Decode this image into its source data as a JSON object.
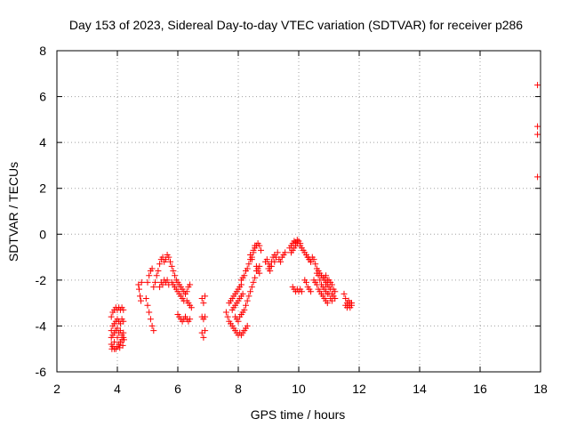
{
  "chart_data": {
    "type": "scatter",
    "title": "Day 153 of 2023, Sidereal Day-to-day VTEC variation (SDTVAR) for receiver p286",
    "xlabel": "GPS time / hours",
    "ylabel": "SDTVAR / TECUs",
    "xlim": [
      2,
      18
    ],
    "ylim": [
      -6,
      8
    ],
    "xticks": [
      2,
      4,
      6,
      8,
      10,
      12,
      14,
      16,
      18
    ],
    "yticks": [
      -6,
      -4,
      -2,
      0,
      2,
      4,
      6,
      8
    ],
    "grid": true,
    "marker": "+",
    "marker_color": "#ff0000",
    "series": [
      {
        "name": "SDTVAR",
        "points": [
          [
            3.8,
            -3.6
          ],
          [
            3.85,
            -3.4
          ],
          [
            3.9,
            -3.3
          ],
          [
            3.95,
            -3.2
          ],
          [
            4.0,
            -3.3
          ],
          [
            4.05,
            -3.2
          ],
          [
            4.1,
            -3.3
          ],
          [
            4.15,
            -3.2
          ],
          [
            4.2,
            -3.3
          ],
          [
            3.8,
            -4.2
          ],
          [
            3.85,
            -4.0
          ],
          [
            3.9,
            -3.9
          ],
          [
            3.95,
            -3.8
          ],
          [
            4.0,
            -3.7
          ],
          [
            4.05,
            -3.8
          ],
          [
            4.1,
            -3.9
          ],
          [
            4.15,
            -3.7
          ],
          [
            4.2,
            -3.8
          ],
          [
            3.8,
            -4.5
          ],
          [
            3.85,
            -4.4
          ],
          [
            3.9,
            -4.3
          ],
          [
            3.95,
            -4.2
          ],
          [
            4.0,
            -4.1
          ],
          [
            4.05,
            -4.3
          ],
          [
            4.1,
            -4.2
          ],
          [
            4.15,
            -4.4
          ],
          [
            4.2,
            -4.3
          ],
          [
            3.8,
            -4.8
          ],
          [
            3.85,
            -4.9
          ],
          [
            3.9,
            -5.0
          ],
          [
            3.95,
            -5.0
          ],
          [
            4.0,
            -4.9
          ],
          [
            4.05,
            -4.8
          ],
          [
            4.1,
            -4.7
          ],
          [
            4.15,
            -4.6
          ],
          [
            4.2,
            -4.5
          ],
          [
            3.82,
            -5.0
          ],
          [
            3.9,
            -4.7
          ],
          [
            4.0,
            -4.5
          ],
          [
            4.08,
            -4.95
          ],
          [
            4.18,
            -4.85
          ],
          [
            4.22,
            -4.6
          ],
          [
            4.7,
            -2.2
          ],
          [
            4.72,
            -2.4
          ],
          [
            4.75,
            -2.7
          ],
          [
            4.78,
            -2.9
          ],
          [
            4.8,
            -2.1
          ],
          [
            4.95,
            -2.8
          ],
          [
            5.0,
            -3.1
          ],
          [
            5.05,
            -3.4
          ],
          [
            5.1,
            -3.7
          ],
          [
            5.15,
            -4.0
          ],
          [
            5.2,
            -4.2
          ],
          [
            5.0,
            -2.1
          ],
          [
            5.05,
            -1.8
          ],
          [
            5.1,
            -1.6
          ],
          [
            5.15,
            -1.5
          ],
          [
            5.2,
            -2.3
          ],
          [
            5.25,
            -2.1
          ],
          [
            5.3,
            -1.8
          ],
          [
            5.35,
            -1.6
          ],
          [
            5.4,
            -1.3
          ],
          [
            5.45,
            -1.1
          ],
          [
            5.5,
            -1.0
          ],
          [
            5.55,
            -1.2
          ],
          [
            5.6,
            -1.1
          ],
          [
            5.65,
            -0.9
          ],
          [
            5.4,
            -2.3
          ],
          [
            5.45,
            -2.1
          ],
          [
            5.5,
            -2.2
          ],
          [
            5.55,
            -2.0
          ],
          [
            5.6,
            -2.1
          ],
          [
            5.65,
            -2.0
          ],
          [
            5.7,
            -2.2
          ],
          [
            5.7,
            -1.0
          ],
          [
            5.75,
            -1.2
          ],
          [
            5.8,
            -1.4
          ],
          [
            5.85,
            -1.6
          ],
          [
            5.9,
            -1.8
          ],
          [
            5.95,
            -2.0
          ],
          [
            6.0,
            -2.1
          ],
          [
            5.8,
            -2.1
          ],
          [
            5.85,
            -2.2
          ],
          [
            5.9,
            -2.3
          ],
          [
            5.95,
            -2.4
          ],
          [
            6.0,
            -2.5
          ],
          [
            6.05,
            -2.6
          ],
          [
            6.1,
            -2.7
          ],
          [
            6.15,
            -2.8
          ],
          [
            6.2,
            -2.9
          ],
          [
            6.05,
            -2.2
          ],
          [
            6.1,
            -2.3
          ],
          [
            6.15,
            -2.4
          ],
          [
            6.2,
            -2.5
          ],
          [
            6.25,
            -2.6
          ],
          [
            6.3,
            -2.5
          ],
          [
            6.35,
            -2.3
          ],
          [
            6.4,
            -2.2
          ],
          [
            6.0,
            -3.5
          ],
          [
            6.05,
            -3.6
          ],
          [
            6.1,
            -3.7
          ],
          [
            6.15,
            -3.8
          ],
          [
            6.2,
            -3.7
          ],
          [
            6.25,
            -3.6
          ],
          [
            6.3,
            -3.7
          ],
          [
            6.35,
            -3.8
          ],
          [
            6.4,
            -3.7
          ],
          [
            6.3,
            -2.9
          ],
          [
            6.35,
            -3.0
          ],
          [
            6.4,
            -3.1
          ],
          [
            6.45,
            -3.2
          ],
          [
            6.8,
            -2.8
          ],
          [
            6.85,
            -3.0
          ],
          [
            6.9,
            -2.7
          ],
          [
            6.8,
            -3.6
          ],
          [
            6.85,
            -3.7
          ],
          [
            6.9,
            -3.6
          ],
          [
            6.8,
            -4.3
          ],
          [
            6.85,
            -4.5
          ],
          [
            6.9,
            -4.2
          ],
          [
            7.6,
            -3.4
          ],
          [
            7.65,
            -3.6
          ],
          [
            7.7,
            -3.8
          ],
          [
            7.75,
            -3.9
          ],
          [
            7.8,
            -4.0
          ],
          [
            7.85,
            -4.1
          ],
          [
            7.9,
            -4.2
          ],
          [
            7.95,
            -4.3
          ],
          [
            8.0,
            -4.4
          ],
          [
            8.05,
            -4.3
          ],
          [
            8.1,
            -4.4
          ],
          [
            8.15,
            -4.3
          ],
          [
            8.2,
            -4.2
          ],
          [
            8.25,
            -4.1
          ],
          [
            8.3,
            -4.0
          ],
          [
            7.7,
            -3.0
          ],
          [
            7.75,
            -2.9
          ],
          [
            7.8,
            -2.8
          ],
          [
            7.85,
            -2.7
          ],
          [
            7.9,
            -2.6
          ],
          [
            7.95,
            -2.5
          ],
          [
            8.0,
            -2.4
          ],
          [
            8.05,
            -2.3
          ],
          [
            8.1,
            -2.2
          ],
          [
            7.8,
            -3.3
          ],
          [
            7.85,
            -3.2
          ],
          [
            7.9,
            -3.1
          ],
          [
            7.95,
            -3.0
          ],
          [
            8.0,
            -2.9
          ],
          [
            8.05,
            -2.8
          ],
          [
            8.1,
            -2.7
          ],
          [
            8.15,
            -2.6
          ],
          [
            7.9,
            -3.6
          ],
          [
            7.95,
            -3.7
          ],
          [
            8.0,
            -3.8
          ],
          [
            8.05,
            -3.6
          ],
          [
            8.1,
            -3.5
          ],
          [
            8.15,
            -3.4
          ],
          [
            8.1,
            -2.0
          ],
          [
            8.15,
            -1.9
          ],
          [
            8.2,
            -1.8
          ],
          [
            8.25,
            -1.6
          ],
          [
            8.3,
            -1.5
          ],
          [
            8.35,
            -1.3
          ],
          [
            8.4,
            -1.1
          ],
          [
            8.45,
            -1.0
          ],
          [
            8.2,
            -3.3
          ],
          [
            8.25,
            -3.1
          ],
          [
            8.3,
            -2.9
          ],
          [
            8.35,
            -2.7
          ],
          [
            8.4,
            -2.5
          ],
          [
            8.45,
            -2.3
          ],
          [
            8.5,
            -2.1
          ],
          [
            8.55,
            -1.9
          ],
          [
            8.5,
            -0.8
          ],
          [
            8.55,
            -0.6
          ],
          [
            8.6,
            -0.5
          ],
          [
            8.65,
            -0.4
          ],
          [
            8.7,
            -0.5
          ],
          [
            8.75,
            -0.7
          ],
          [
            8.4,
            -0.9
          ],
          [
            8.45,
            -1.1
          ],
          [
            8.5,
            -0.7
          ],
          [
            8.55,
            -0.5
          ],
          [
            8.6,
            -1.4
          ],
          [
            8.65,
            -1.6
          ],
          [
            8.7,
            -1.7
          ],
          [
            8.6,
            -1.6
          ],
          [
            8.65,
            -1.5
          ],
          [
            8.7,
            -1.4
          ],
          [
            8.9,
            -1.2
          ],
          [
            8.95,
            -1.1
          ],
          [
            9.0,
            -1.3
          ],
          [
            9.05,
            -1.4
          ],
          [
            9.1,
            -1.2
          ],
          [
            9.15,
            -1.0
          ],
          [
            9.2,
            -0.9
          ],
          [
            9.0,
            -1.5
          ],
          [
            9.05,
            -1.6
          ],
          [
            9.1,
            -1.4
          ],
          [
            9.2,
            -1.2
          ],
          [
            9.25,
            -1.0
          ],
          [
            9.3,
            -0.8
          ],
          [
            9.35,
            -1.1
          ],
          [
            9.4,
            -1.2
          ],
          [
            9.45,
            -1.0
          ],
          [
            9.5,
            -0.9
          ],
          [
            9.55,
            -0.8
          ],
          [
            9.7,
            -0.6
          ],
          [
            9.75,
            -0.5
          ],
          [
            9.8,
            -0.4
          ],
          [
            9.85,
            -0.3
          ],
          [
            9.9,
            -0.35
          ],
          [
            9.95,
            -0.4
          ],
          [
            9.75,
            -0.8
          ],
          [
            9.8,
            -0.7
          ],
          [
            9.85,
            -0.6
          ],
          [
            9.9,
            -0.5
          ],
          [
            9.95,
            -0.25
          ],
          [
            10.0,
            -0.3
          ],
          [
            10.05,
            -0.4
          ],
          [
            10.05,
            -0.5
          ],
          [
            10.1,
            -0.6
          ],
          [
            10.15,
            -0.7
          ],
          [
            10.2,
            -0.8
          ],
          [
            10.25,
            -0.9
          ],
          [
            10.3,
            -1.0
          ],
          [
            10.35,
            -1.1
          ],
          [
            10.4,
            -1.2
          ],
          [
            9.8,
            -2.3
          ],
          [
            9.85,
            -2.4
          ],
          [
            9.9,
            -2.5
          ],
          [
            9.95,
            -2.4
          ],
          [
            10.0,
            -2.5
          ],
          [
            10.05,
            -2.4
          ],
          [
            10.1,
            -2.5
          ],
          [
            10.2,
            -2.0
          ],
          [
            10.25,
            -2.1
          ],
          [
            10.3,
            -2.3
          ],
          [
            10.35,
            -2.4
          ],
          [
            10.4,
            -2.5
          ],
          [
            10.3,
            -1.0
          ],
          [
            10.35,
            -1.1
          ],
          [
            10.4,
            -1.2
          ],
          [
            10.45,
            -1.0
          ],
          [
            10.5,
            -1.1
          ],
          [
            10.55,
            -1.3
          ],
          [
            10.6,
            -1.5
          ],
          [
            10.65,
            -1.6
          ],
          [
            10.7,
            -1.7
          ],
          [
            10.75,
            -1.8
          ],
          [
            10.8,
            -1.9
          ],
          [
            10.85,
            -2.0
          ],
          [
            10.9,
            -2.2
          ],
          [
            10.5,
            -2.0
          ],
          [
            10.55,
            -2.1
          ],
          [
            10.6,
            -2.2
          ],
          [
            10.65,
            -2.4
          ],
          [
            10.7,
            -2.5
          ],
          [
            10.75,
            -2.6
          ],
          [
            10.8,
            -2.7
          ],
          [
            10.85,
            -2.8
          ],
          [
            10.9,
            -2.9
          ],
          [
            10.95,
            -3.0
          ],
          [
            10.6,
            -1.7
          ],
          [
            10.65,
            -1.8
          ],
          [
            10.7,
            -2.0
          ],
          [
            10.75,
            -2.2
          ],
          [
            10.8,
            -2.3
          ],
          [
            10.85,
            -2.4
          ],
          [
            10.9,
            -2.5
          ],
          [
            10.95,
            -2.6
          ],
          [
            10.9,
            -2.1
          ],
          [
            10.95,
            -2.2
          ],
          [
            11.0,
            -2.3
          ],
          [
            11.05,
            -2.4
          ],
          [
            11.1,
            -2.6
          ],
          [
            11.15,
            -2.7
          ],
          [
            11.2,
            -2.8
          ],
          [
            11.0,
            -2.0
          ],
          [
            11.05,
            -2.1
          ],
          [
            11.1,
            -2.2
          ],
          [
            11.15,
            -2.4
          ],
          [
            11.2,
            -2.5
          ],
          [
            10.85,
            -1.9
          ],
          [
            10.9,
            -1.8
          ],
          [
            10.95,
            -2.0
          ],
          [
            11.0,
            -2.6
          ],
          [
            11.05,
            -2.8
          ],
          [
            11.1,
            -2.9
          ],
          [
            11.5,
            -2.6
          ],
          [
            11.55,
            -2.8
          ],
          [
            11.6,
            -3.0
          ],
          [
            11.65,
            -3.1
          ],
          [
            11.7,
            -3.2
          ],
          [
            11.75,
            -3.0
          ],
          [
            11.55,
            -3.1
          ],
          [
            11.6,
            -3.2
          ],
          [
            11.65,
            -2.9
          ],
          [
            11.7,
            -3.0
          ],
          [
            11.75,
            -3.1
          ],
          [
            17.9,
            6.5
          ],
          [
            17.9,
            4.7
          ],
          [
            17.9,
            4.35
          ],
          [
            17.9,
            2.5
          ]
        ]
      }
    ]
  }
}
